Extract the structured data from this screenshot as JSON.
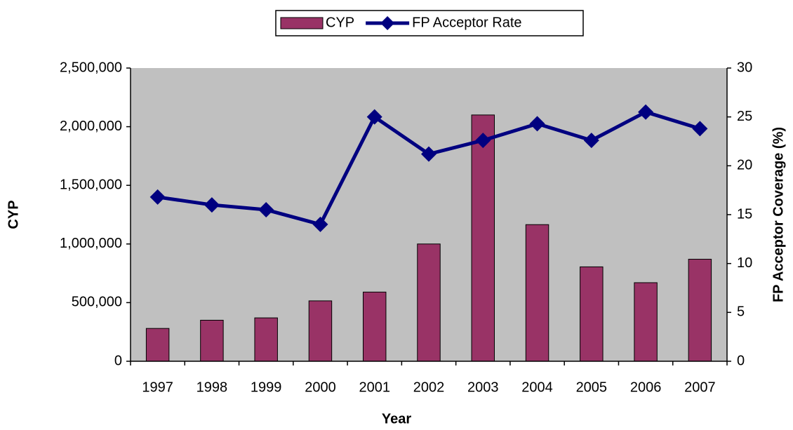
{
  "chart_data": {
    "type": "bar_line",
    "x_label": "Year",
    "y_label": "CYP",
    "y2_label": "FP Acceptor Coverage (%)",
    "categories": [
      "1997",
      "1998",
      "1999",
      "2000",
      "2001",
      "2002",
      "2003",
      "2004",
      "2005",
      "2006",
      "2007"
    ],
    "series": [
      {
        "name": "CYP",
        "type": "bar",
        "color": "#993366",
        "values": [
          280000,
          350000,
          370000,
          515000,
          590000,
          1000000,
          2100000,
          1165000,
          805000,
          670000,
          870000
        ]
      },
      {
        "name": "FP Acceptor Rate",
        "type": "line",
        "axis": "y2",
        "color": "#000080",
        "values": [
          16.8,
          16.0,
          15.5,
          14.0,
          25.0,
          21.2,
          22.6,
          24.3,
          22.6,
          25.5,
          23.8
        ]
      }
    ],
    "ylim": [
      0,
      2500000
    ],
    "yticks": [
      0,
      {
        "value": 500000,
        "label": "500,000"
      },
      {
        "value": 1000000,
        "label": "1,000,000"
      },
      {
        "value": 1500000,
        "label": "1,500,000"
      },
      {
        "value": 2000000,
        "label": "2,000,000"
      },
      {
        "value": 2500000,
        "label": "2,500,000"
      }
    ],
    "y2lim": [
      0,
      30
    ],
    "y2ticks": [
      0,
      5,
      10,
      15,
      20,
      25,
      30
    ],
    "legend": "top",
    "plot_background": "#c0c0c0"
  }
}
